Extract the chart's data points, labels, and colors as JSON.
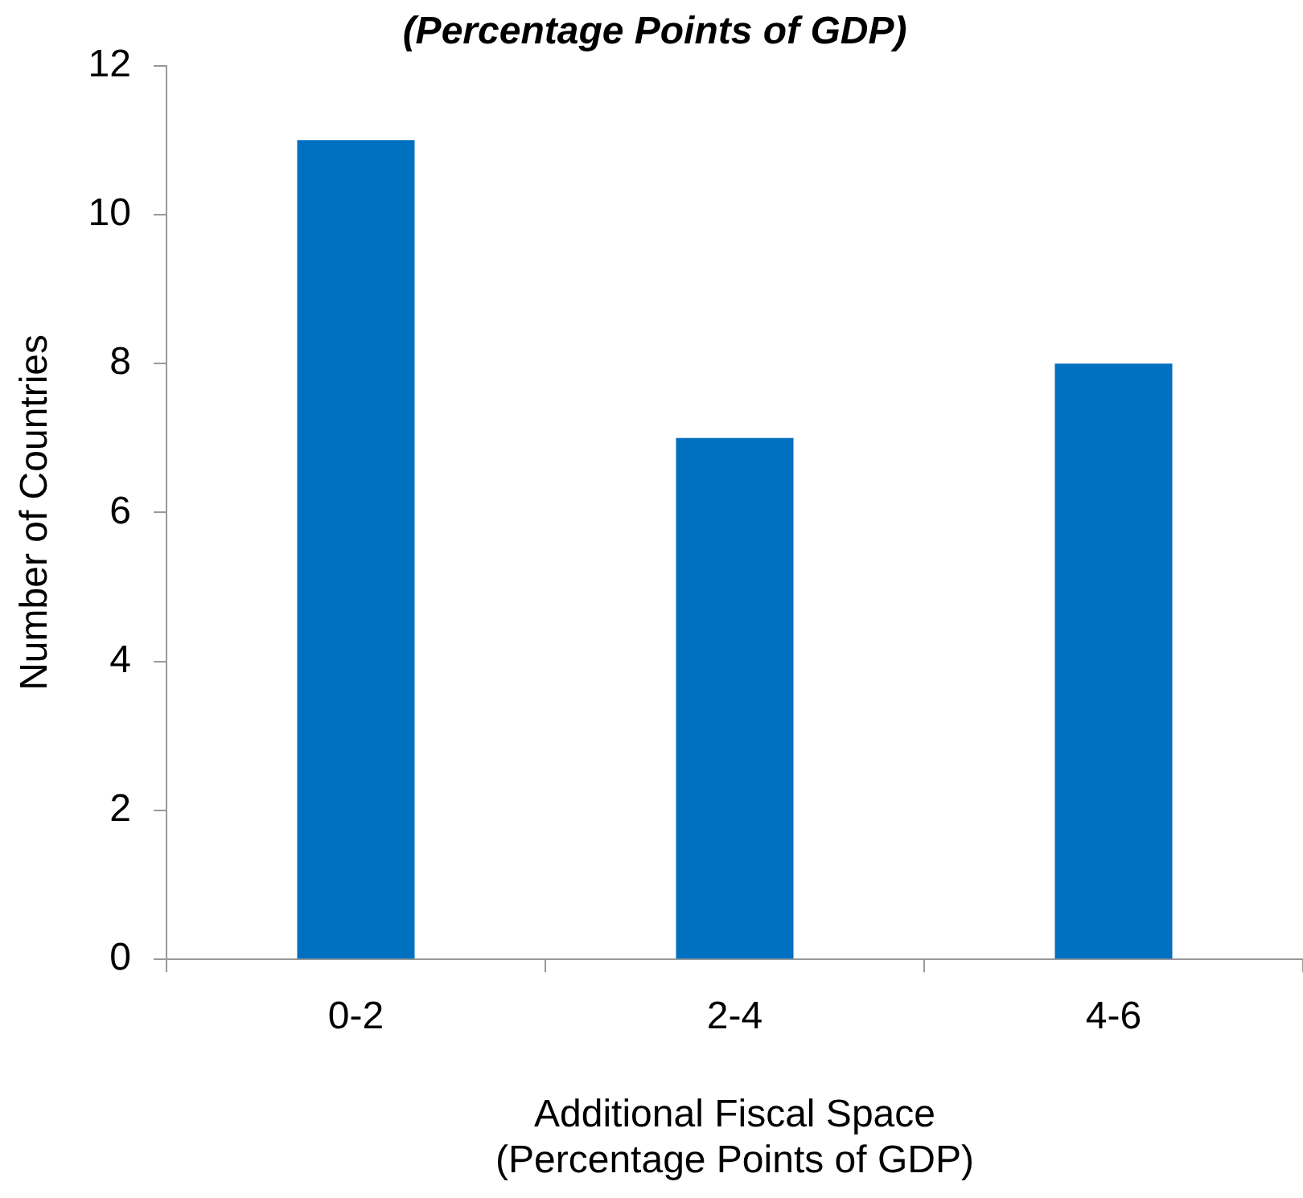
{
  "chart_data": {
    "type": "bar",
    "title": "(Percentage Points of GDP)",
    "xlabel": "Additional Fiscal Space\n(Percentage Points of GDP)",
    "ylabel": "Number of Countries",
    "categories": [
      "0-2",
      "2-4",
      "4-6"
    ],
    "values": [
      11,
      7,
      8
    ],
    "color": "#0070c0",
    "ylim": [
      0,
      12
    ],
    "yticks": [
      0,
      2,
      4,
      6,
      8,
      10,
      12
    ],
    "grid": false,
    "legend": false
  }
}
